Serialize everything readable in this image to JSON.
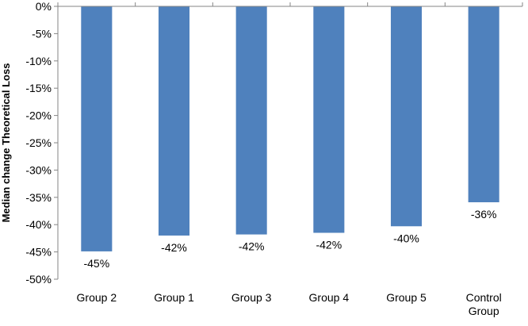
{
  "chart_data": {
    "type": "bar",
    "title": "",
    "xlabel": "",
    "ylabel": "Median change Theoretical Loss",
    "categories": [
      "Group 2",
      "Group 1",
      "Group 3",
      "Group 4",
      "Group 5",
      "Control Group"
    ],
    "values": [
      -45,
      -42,
      -42,
      -42,
      -40,
      -36
    ],
    "precise_values": [
      -44.9,
      -42.0,
      -41.8,
      -41.5,
      -40.3,
      -35.9
    ],
    "data_labels": [
      "-45%",
      "-42%",
      "-42%",
      "-42%",
      "-40%",
      "-36%"
    ],
    "ylim": [
      -50,
      0
    ],
    "ytick_labels": [
      "0%",
      "-5%",
      "-10%",
      "-15%",
      "-20%",
      "-25%",
      "-30%",
      "-35%",
      "-40%",
      "-45%",
      "-50%"
    ],
    "bar_color": "#4f81bd",
    "grid": false,
    "legend": "none"
  }
}
